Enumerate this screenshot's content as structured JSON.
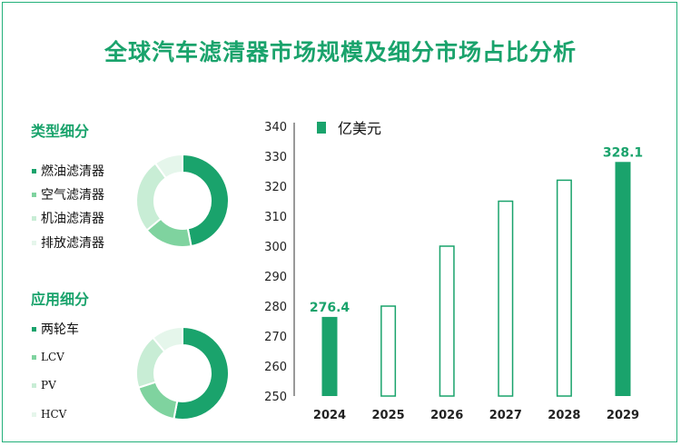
{
  "title": "全球汽车滤清器市场规模及细分市场占比分析",
  "type_section": {
    "title": "类型细分",
    "items": [
      {
        "label": "燃油滤清器",
        "color": "#1aa36c"
      },
      {
        "label": "空气滤清器",
        "color": "#7fd39f"
      },
      {
        "label": "机油滤清器",
        "color": "#c8edd5"
      },
      {
        "label": "排放滤清器",
        "color": "#e5f6eb"
      }
    ]
  },
  "application_section": {
    "title": "应用细分",
    "items": [
      {
        "label": "两轮车",
        "color": "#1aa36c"
      },
      {
        "label": "LCV",
        "color": "#7fd39f"
      },
      {
        "label": "PV",
        "color": "#c8edd5"
      },
      {
        "label": "HCV",
        "color": "#e5f6eb"
      }
    ]
  },
  "chart_data": [
    {
      "type": "pie",
      "title": "类型细分",
      "categories": [
        "燃油滤清器",
        "空气滤清器",
        "机油滤清器",
        "排放滤清器"
      ],
      "values": [
        47,
        17,
        26,
        10
      ],
      "colors": [
        "#1aa36c",
        "#7fd39f",
        "#c8edd5",
        "#e5f6eb"
      ]
    },
    {
      "type": "pie",
      "title": "应用细分",
      "categories": [
        "两轮车",
        "LCV",
        "PV",
        "HCV"
      ],
      "values": [
        53,
        17,
        19,
        11
      ],
      "colors": [
        "#1aa36c",
        "#7fd39f",
        "#c8edd5",
        "#e5f6eb"
      ]
    },
    {
      "type": "bar",
      "categories": [
        "2024",
        "2025",
        "2026",
        "2027",
        "2028",
        "2029"
      ],
      "series": [
        {
          "name": "亿美元",
          "values": [
            276.4,
            280.0,
            300.0,
            315.0,
            322.0,
            328.1
          ]
        }
      ],
      "data_labels": [
        "276.4",
        "",
        "",
        "",
        "",
        "328.1"
      ],
      "filled": [
        true,
        false,
        false,
        false,
        false,
        true
      ],
      "yticks": [
        250,
        260,
        270,
        280,
        290,
        300,
        310,
        320,
        330,
        340
      ],
      "ylim": [
        250,
        340
      ],
      "legend": "top-left",
      "grid": false,
      "color": "#1aa36c"
    }
  ]
}
